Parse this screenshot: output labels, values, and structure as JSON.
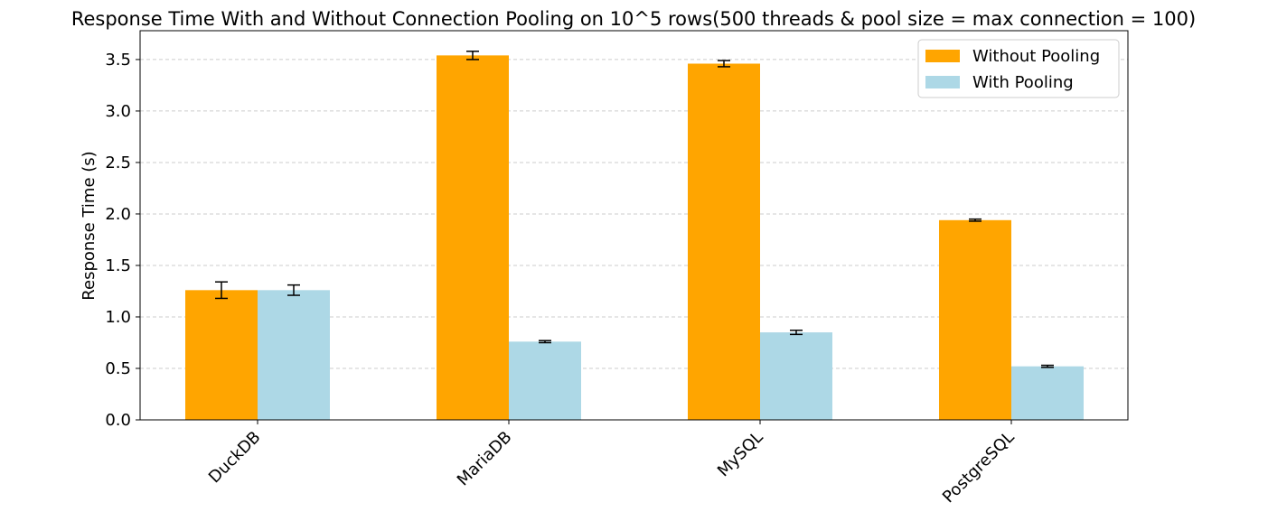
{
  "chart_data": {
    "type": "bar",
    "title": "Response Time With and Without Connection Pooling on 10^5 rows(500 threads & pool size = max connection = 100)",
    "y_label": "Response Time (s)",
    "categories": [
      "DuckDB",
      "MariaDB",
      "MySQL",
      "PostgreSQL"
    ],
    "series": [
      {
        "name": "Without Pooling",
        "color": "#ffa500",
        "values": [
          1.26,
          3.54,
          3.46,
          1.94
        ],
        "errors": [
          0.08,
          0.04,
          0.03,
          0.01
        ]
      },
      {
        "name": "With Pooling",
        "color": "#add8e6",
        "values": [
          1.26,
          0.76,
          0.85,
          0.52
        ],
        "errors": [
          0.05,
          0.01,
          0.02,
          0.01
        ]
      }
    ],
    "ylim": [
      0,
      3.78
    ],
    "yticks": [
      {
        "value": 0,
        "label": "0.0"
      },
      {
        "value": 0.5,
        "label": "0.5"
      },
      {
        "value": 1,
        "label": "1.0"
      },
      {
        "value": 1.5,
        "label": "1.5"
      },
      {
        "value": 2,
        "label": "2.0"
      },
      {
        "value": 2.5,
        "label": "2.5"
      },
      {
        "value": 3,
        "label": "3.0"
      },
      {
        "value": 3.5,
        "label": "3.5"
      }
    ],
    "grid": true,
    "legend": "upper-right"
  }
}
